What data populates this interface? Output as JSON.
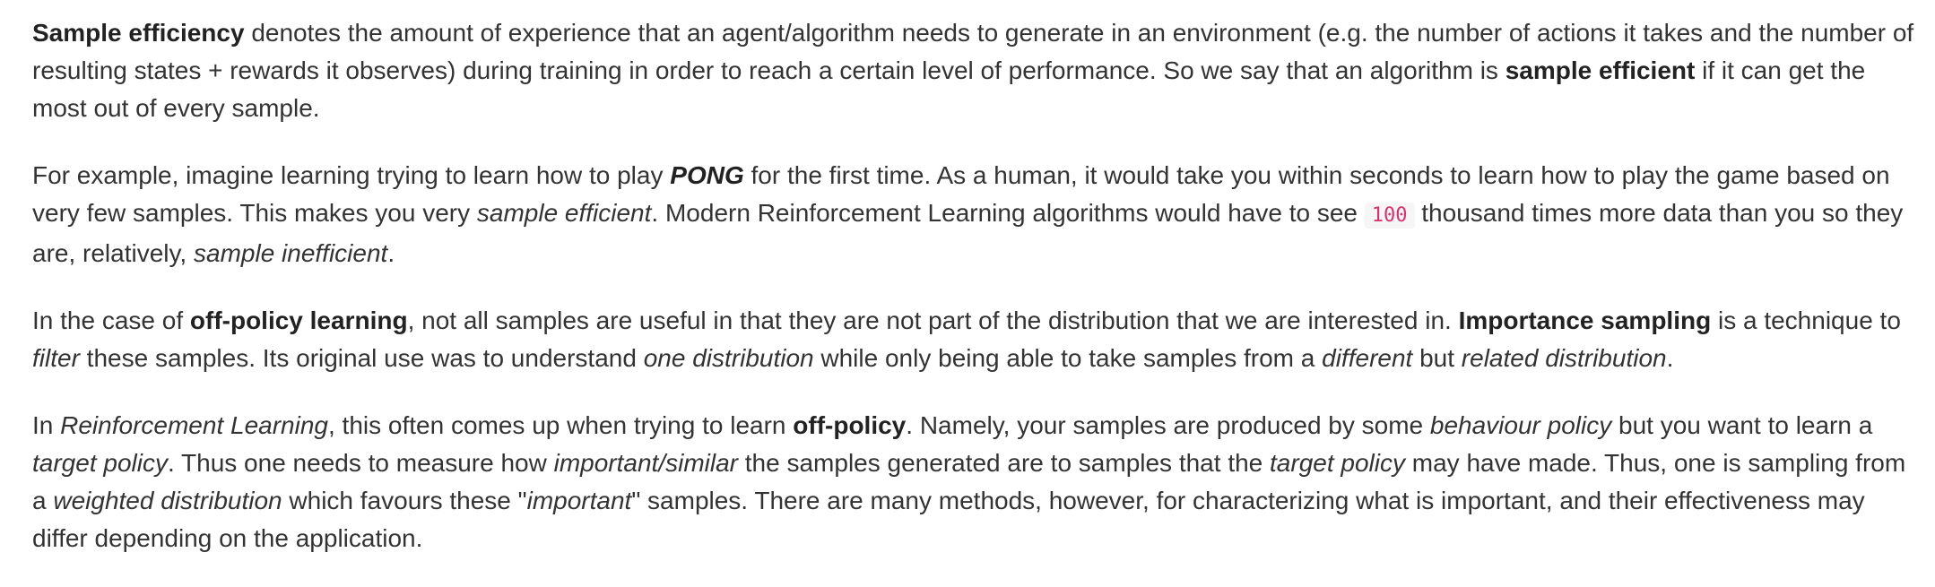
{
  "paragraphs": [
    {
      "segments": [
        {
          "text": "Sample efficiency",
          "style": "bold"
        },
        {
          "text": " denotes the amount of experience that an agent/algorithm needs to generate in an environment (e.g. the number of actions it takes and the number of resulting states + rewards it observes) during training in order to reach a certain level of performance. So we say that an algorithm is ",
          "style": "plain"
        },
        {
          "text": "sample efficient",
          "style": "bold"
        },
        {
          "text": " if it can get the most out of every sample.",
          "style": "plain"
        }
      ]
    },
    {
      "segments": [
        {
          "text": "For example, imagine learning trying to learn how to play ",
          "style": "plain"
        },
        {
          "text": "PONG",
          "style": "bold-italic"
        },
        {
          "text": " for the first time. As a human, it would take you within seconds to learn how to play the game based on very few samples. This makes you very ",
          "style": "plain"
        },
        {
          "text": "sample efficient",
          "style": "italic"
        },
        {
          "text": ". Modern Reinforcement Learning algorithms would have to see ",
          "style": "plain"
        },
        {
          "text": "100",
          "style": "code"
        },
        {
          "text": " thousand times more data than you so they are, relatively, ",
          "style": "plain"
        },
        {
          "text": "sample inefficient",
          "style": "italic"
        },
        {
          "text": ".",
          "style": "plain"
        }
      ]
    },
    {
      "segments": [
        {
          "text": "In the case of ",
          "style": "plain"
        },
        {
          "text": "off-policy learning",
          "style": "bold"
        },
        {
          "text": ", not all samples are useful in that they are not part of the distribution that we are interested in. ",
          "style": "plain"
        },
        {
          "text": "Importance sampling",
          "style": "bold"
        },
        {
          "text": " is a technique to ",
          "style": "plain"
        },
        {
          "text": "filter",
          "style": "italic"
        },
        {
          "text": " these samples. Its original use was to understand ",
          "style": "plain"
        },
        {
          "text": "one distribution",
          "style": "italic"
        },
        {
          "text": " while only being able to take samples from a ",
          "style": "plain"
        },
        {
          "text": "different",
          "style": "italic"
        },
        {
          "text": " but ",
          "style": "plain"
        },
        {
          "text": "related distribution",
          "style": "italic"
        },
        {
          "text": ".",
          "style": "plain"
        }
      ]
    },
    {
      "segments": [
        {
          "text": "In ",
          "style": "plain"
        },
        {
          "text": "Reinforcement Learning",
          "style": "italic"
        },
        {
          "text": ", this often comes up when trying to learn ",
          "style": "plain"
        },
        {
          "text": "off-policy",
          "style": "bold"
        },
        {
          "text": ". Namely, your samples are produced by some ",
          "style": "plain"
        },
        {
          "text": "behaviour policy",
          "style": "italic"
        },
        {
          "text": " but you want to learn a ",
          "style": "plain"
        },
        {
          "text": "target policy",
          "style": "italic"
        },
        {
          "text": ". Thus one needs to measure how ",
          "style": "plain"
        },
        {
          "text": "important/similar",
          "style": "italic"
        },
        {
          "text": " the samples generated are to samples that the ",
          "style": "plain"
        },
        {
          "text": "target policy",
          "style": "italic"
        },
        {
          "text": " may have made. Thus, one is sampling from a ",
          "style": "plain"
        },
        {
          "text": "weighted distribution",
          "style": "italic"
        },
        {
          "text": " which favours these \"",
          "style": "plain"
        },
        {
          "text": "important",
          "style": "italic"
        },
        {
          "text": "\" samples. There are many methods, however, for characterizing what is important, and their effectiveness may differ depending on the application.",
          "style": "plain"
        }
      ]
    }
  ],
  "colors": {
    "text": "#333333",
    "code_text": "#d6336c",
    "code_background": "#f6f6f7"
  }
}
